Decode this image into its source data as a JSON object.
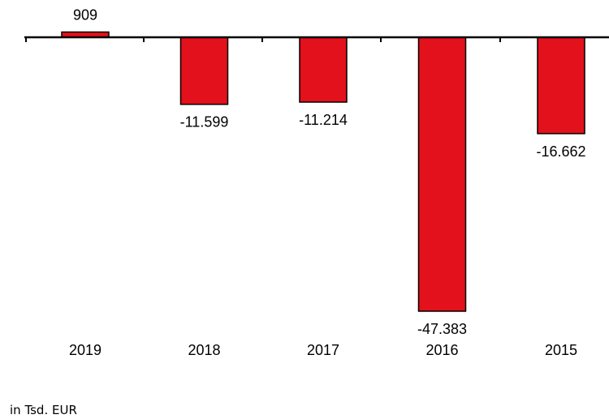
{
  "chart_data": {
    "type": "bar",
    "categories": [
      "2019",
      "2018",
      "2017",
      "2016",
      "2015"
    ],
    "values": [
      909,
      -11599,
      -11214,
      -47383,
      -16662
    ],
    "value_labels": [
      "909",
      "-11.599",
      "-11.214",
      "-47.383",
      "-16.662"
    ],
    "unit_note": "in Tsd. EUR",
    "ylim": [
      -47383,
      909
    ],
    "grid": false,
    "legend": "none",
    "bar_color": "#e3111b",
    "bar_stroke": "#000000"
  }
}
